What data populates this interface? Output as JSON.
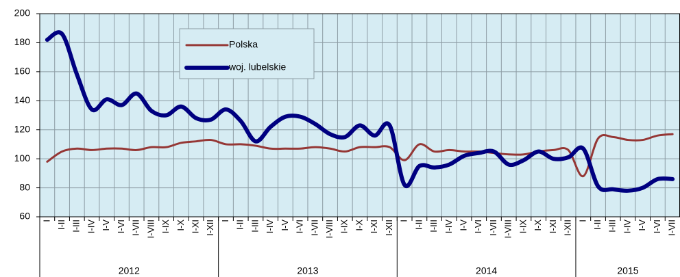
{
  "chart_data": {
    "type": "line",
    "groups": [
      {
        "label": "2012",
        "categories": [
          "I",
          "I-II",
          "I-III",
          "I-IV",
          "I-V",
          "I-VI",
          "I-VII",
          "I-VIII",
          "I-IX",
          "I-X",
          "I-XI",
          "I-XII"
        ]
      },
      {
        "label": "2013",
        "categories": [
          "I",
          "I-II",
          "I-III",
          "I-IV",
          "I-V",
          "I-VI",
          "I-VII",
          "I-VIII",
          "I-IX",
          "I-X",
          "I-XI",
          "I-XII"
        ]
      },
      {
        "label": "2014",
        "categories": [
          "I",
          "I-II",
          "I-III",
          "I-IV",
          "I-V",
          "I-VI",
          "I-VII",
          "I-VIII",
          "I-IX",
          "I-X",
          "I-XI",
          "I-XII"
        ]
      },
      {
        "label": "2015",
        "categories": [
          "I",
          "I-II",
          "I-III",
          "I-IV",
          "I-V",
          "I-VI",
          "I-VII"
        ]
      }
    ],
    "series": [
      {
        "name": "Polska",
        "color": "#953735",
        "width": 3,
        "values": [
          98,
          105,
          107,
          106,
          107,
          107,
          106,
          108,
          108,
          111,
          112,
          113,
          110,
          110,
          109,
          107,
          107,
          107,
          108,
          107,
          105,
          108,
          108,
          108,
          99,
          110,
          105,
          106,
          105,
          105,
          104,
          103,
          103,
          105,
          106,
          106,
          88,
          114,
          115,
          113,
          113,
          116,
          117
        ]
      },
      {
        "name": "woj. lubelskie",
        "color": "#000080",
        "width": 6,
        "values": [
          182,
          186,
          158,
          134,
          141,
          137,
          145,
          133,
          130,
          136,
          128,
          127,
          134,
          126,
          112,
          122,
          129,
          129,
          124,
          117,
          115,
          123,
          116,
          123,
          82,
          95,
          94,
          96,
          102,
          104,
          105,
          96,
          99,
          105,
          100,
          101,
          107,
          81,
          79,
          78,
          80,
          86,
          86
        ]
      }
    ],
    "ylim": [
      60,
      200
    ],
    "yticks": [
      60,
      80,
      100,
      120,
      140,
      160,
      180,
      200
    ],
    "grid": true
  }
}
